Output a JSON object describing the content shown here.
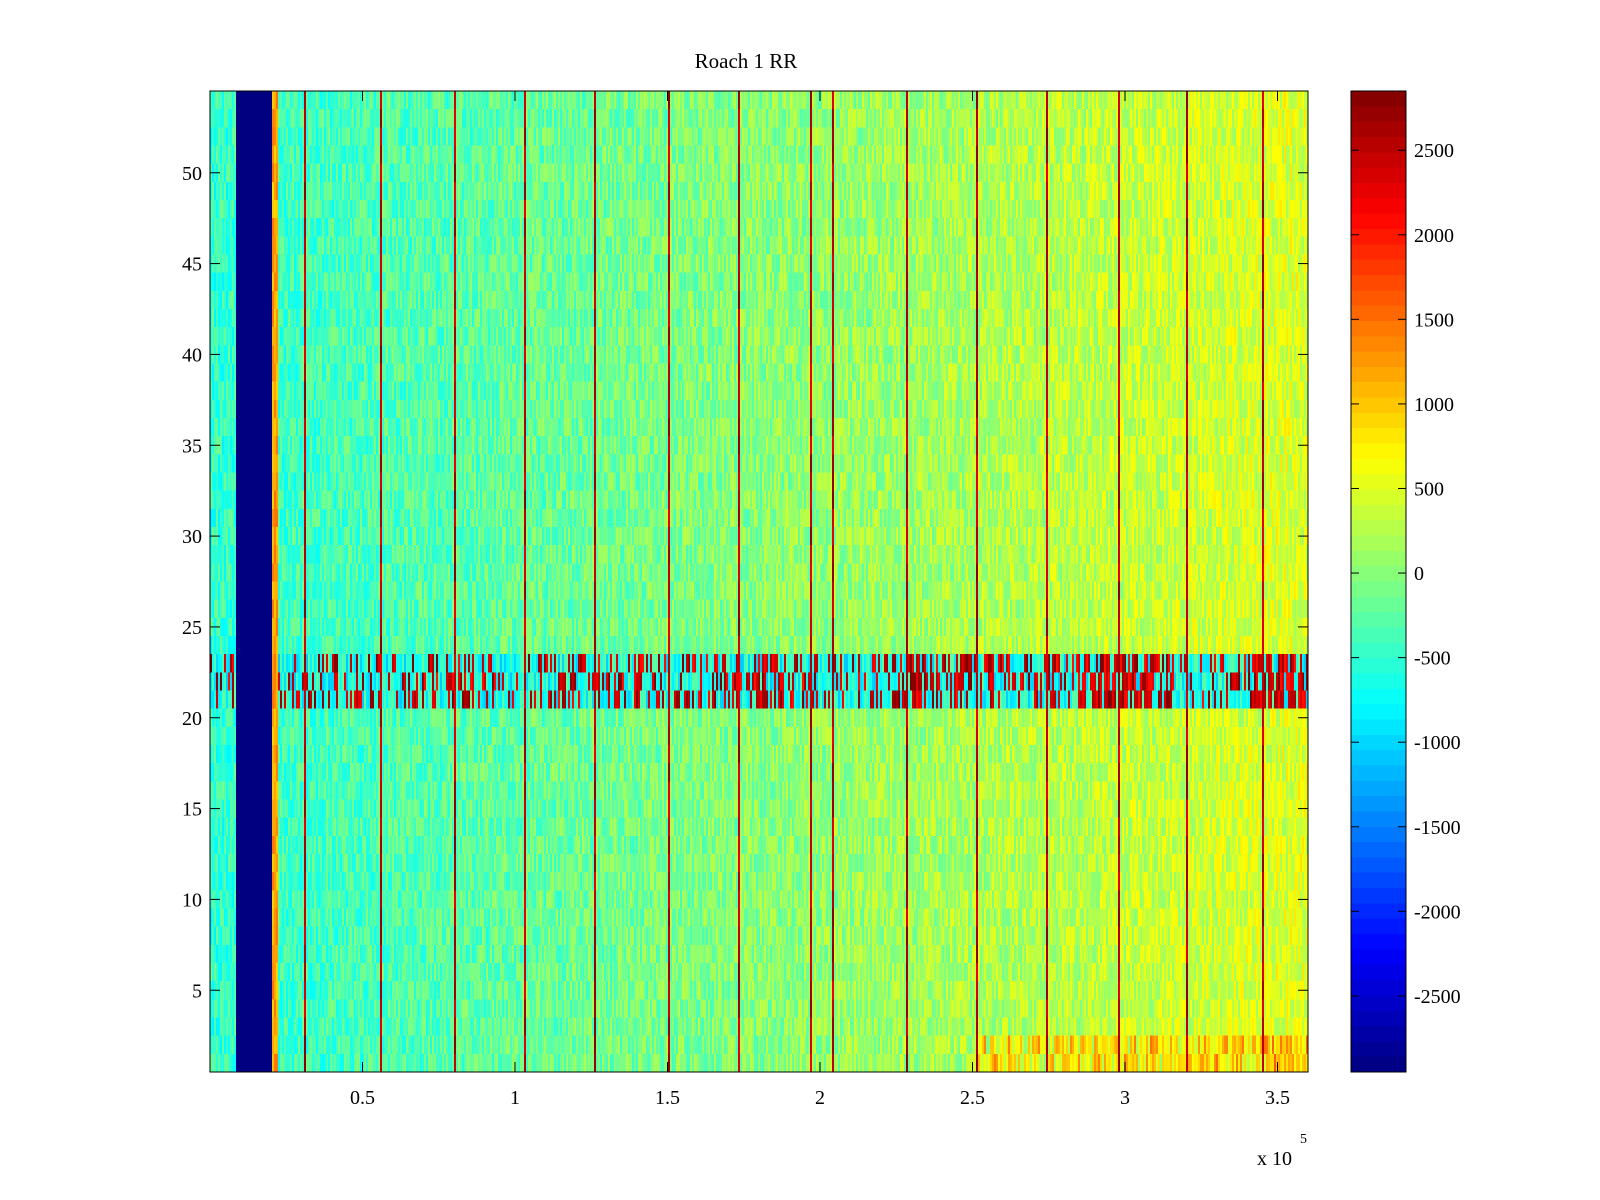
{
  "chart_data": {
    "type": "heatmap",
    "title": "Roach 1 RR",
    "xlabel": "",
    "ylabel": "",
    "x_range": [
      0,
      360000
    ],
    "y_range": [
      0.5,
      54.5
    ],
    "x_ticks": [
      50000,
      100000,
      150000,
      200000,
      250000,
      300000,
      350000
    ],
    "x_tick_labels": [
      "0.5",
      "1",
      "1.5",
      "2",
      "2.5",
      "3",
      "3.5"
    ],
    "x_exponent_label": "x 10",
    "x_exponent_power": "5",
    "y_ticks": [
      5,
      10,
      15,
      20,
      25,
      30,
      35,
      40,
      45,
      50
    ],
    "y_tick_labels": [
      "5",
      "10",
      "15",
      "20",
      "25",
      "30",
      "35",
      "40",
      "45",
      "50"
    ],
    "colorbar": {
      "range": [
        -2950,
        2850
      ],
      "ticks": [
        -2500,
        -2000,
        -1500,
        -1000,
        -500,
        0,
        500,
        1000,
        1500,
        2000,
        2500
      ],
      "tick_labels": [
        "-2500",
        "-2000",
        "-1500",
        "-1000",
        "-500",
        "0",
        "500",
        "1000",
        "1500",
        "2000",
        "2500"
      ],
      "colormap": "jet"
    },
    "features": {
      "saturated_low_band_x": [
        8500,
        20000
      ],
      "anomalous_rows": [
        21,
        22,
        23
      ],
      "background_start_value": -500,
      "background_end_value": 500,
      "vertical_spike_lines_x": [
        31000,
        56000,
        80000,
        103000,
        126000,
        150000,
        173000,
        197000,
        204000,
        228000,
        251000,
        274000,
        298000,
        320000,
        345000
      ],
      "spike_value": 2800
    }
  }
}
